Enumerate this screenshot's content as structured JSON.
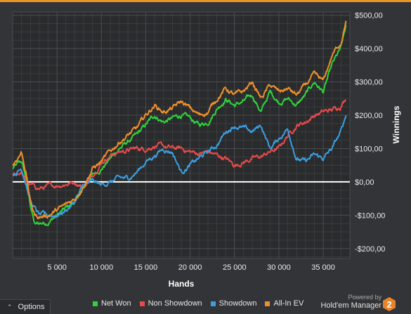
{
  "chart_data": {
    "type": "line",
    "xlabel": "Hands",
    "ylabel": "Winnings",
    "xlim": [
      0,
      38000
    ],
    "ylim": [
      -230,
      510
    ],
    "x_ticks": [
      5000,
      10000,
      15000,
      20000,
      25000,
      30000,
      35000
    ],
    "x_tick_labels": [
      "5 000",
      "10 000",
      "15 000",
      "20 000",
      "25 000",
      "30 000",
      "35 000"
    ],
    "y_ticks": [
      -200,
      -100,
      0,
      100,
      200,
      300,
      400,
      500
    ],
    "y_tick_labels": [
      "-$200,00",
      "-$100,00",
      "$0,00",
      "$100,00",
      "$200,00",
      "$300,00",
      "$400,00",
      "$500,00"
    ],
    "grid": true,
    "legend_position": "bottom",
    "series": [
      {
        "name": "Net Won",
        "color": "#2fd33a",
        "x": [
          0,
          1000,
          1500,
          2000,
          2500,
          3000,
          4000,
          5000,
          6000,
          7000,
          8000,
          9000,
          10000,
          11000,
          12000,
          13000,
          14000,
          15000,
          16000,
          17000,
          18000,
          19000,
          20000,
          21000,
          22000,
          23000,
          24000,
          25000,
          26000,
          27000,
          28000,
          29000,
          30000,
          31000,
          32000,
          33000,
          34000,
          35000,
          36000,
          37000,
          37600
        ],
        "values": [
          40,
          60,
          10,
          -70,
          -130,
          -125,
          -120,
          -100,
          -80,
          -60,
          -20,
          20,
          40,
          70,
          100,
          120,
          140,
          170,
          200,
          180,
          190,
          200,
          190,
          170,
          180,
          220,
          250,
          230,
          240,
          260,
          210,
          270,
          240,
          250,
          230,
          260,
          300,
          270,
          350,
          400,
          470
        ]
      },
      {
        "name": "Non Showdown",
        "color": "#e84a4a",
        "x": [
          0,
          1000,
          1500,
          2000,
          3000,
          4000,
          5000,
          6000,
          7000,
          8000,
          9000,
          10000,
          11000,
          12000,
          13000,
          14000,
          15000,
          16000,
          17000,
          18000,
          19000,
          20000,
          21000,
          22000,
          23000,
          24000,
          25000,
          26000,
          27000,
          28000,
          29000,
          30000,
          31000,
          32000,
          33000,
          34000,
          35000,
          36000,
          37000,
          37600
        ],
        "values": [
          20,
          30,
          0,
          -10,
          -20,
          -15,
          -10,
          -5,
          0,
          -15,
          20,
          60,
          80,
          90,
          95,
          100,
          100,
          110,
          105,
          100,
          100,
          90,
          85,
          90,
          80,
          70,
          50,
          60,
          70,
          75,
          90,
          100,
          140,
          170,
          180,
          200,
          210,
          215,
          230,
          255
        ]
      },
      {
        "name": "Showdown",
        "color": "#3a9fe0",
        "x": [
          0,
          1000,
          1500,
          2000,
          3000,
          4000,
          5000,
          6000,
          7000,
          8000,
          9000,
          10000,
          11000,
          12000,
          13000,
          14000,
          15000,
          16000,
          17000,
          18000,
          19000,
          20000,
          21000,
          22000,
          23000,
          24000,
          25000,
          26000,
          27000,
          28000,
          29000,
          30000,
          31000,
          32000,
          33000,
          34000,
          35000,
          36000,
          37000,
          37600
        ],
        "values": [
          20,
          40,
          0,
          -60,
          -100,
          -100,
          -100,
          -85,
          -60,
          -10,
          0,
          -10,
          0,
          10,
          10,
          30,
          60,
          80,
          100,
          90,
          30,
          50,
          70,
          90,
          110,
          150,
          170,
          160,
          150,
          170,
          100,
          130,
          160,
          70,
          60,
          80,
          70,
          100,
          150,
          205
        ]
      },
      {
        "name": "All-In EV",
        "color": "#f0902a",
        "x": [
          0,
          1000,
          1500,
          2000,
          2500,
          3000,
          4000,
          5000,
          6000,
          7000,
          8000,
          9000,
          10000,
          11000,
          12000,
          13000,
          14000,
          15000,
          16000,
          17000,
          18000,
          19000,
          20000,
          21000,
          22000,
          23000,
          24000,
          25000,
          26000,
          27000,
          28000,
          29000,
          30000,
          31000,
          32000,
          33000,
          34000,
          35000,
          36000,
          37000,
          37600
        ],
        "values": [
          50,
          90,
          30,
          -60,
          -100,
          -105,
          -100,
          -85,
          -70,
          -50,
          -10,
          40,
          60,
          90,
          120,
          140,
          160,
          200,
          230,
          210,
          220,
          240,
          220,
          200,
          210,
          250,
          280,
          260,
          270,
          300,
          250,
          290,
          270,
          280,
          260,
          290,
          320,
          300,
          380,
          420,
          490
        ]
      }
    ]
  },
  "legend": {
    "items": [
      {
        "label": "Net Won",
        "color": "#2fd33a"
      },
      {
        "label": "Non Showdown",
        "color": "#e84a4a"
      },
      {
        "label": "Showdown",
        "color": "#3a9fe0"
      },
      {
        "label": "All-In EV",
        "color": "#f0902a"
      }
    ]
  },
  "options_button": {
    "label": "Options"
  },
  "brand": {
    "powered_by": "Powered by",
    "name": "Hold'em Manager",
    "badge": "2"
  }
}
